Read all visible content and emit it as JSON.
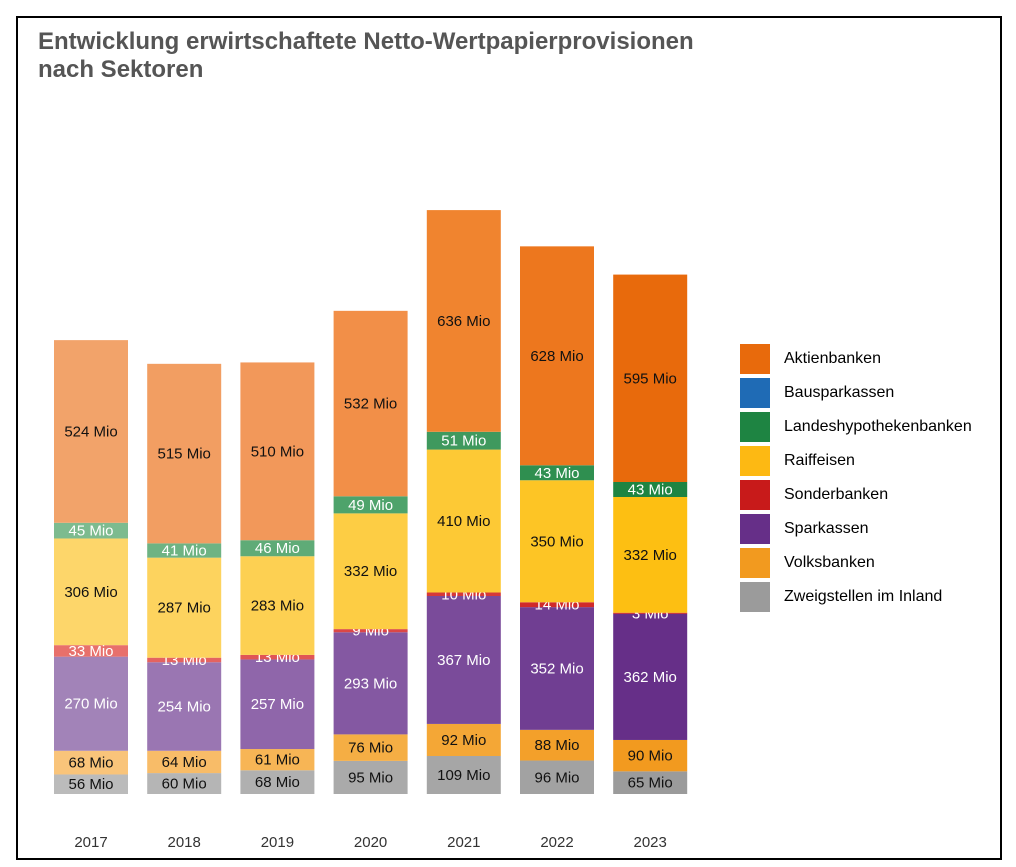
{
  "chart_data": {
    "type": "bar",
    "stacked": true,
    "title_line1": "Entwicklung erwirtschaftete Netto-Wertpapierprovisionen",
    "title_line2": "nach Sektoren",
    "categories": [
      "2017",
      "2018",
      "2019",
      "2020",
      "2021",
      "2022",
      "2023"
    ],
    "unit": "Mio",
    "series": [
      {
        "name": "Zweigstellen im Inland",
        "values": [
          56,
          60,
          68,
          95,
          109,
          96,
          65
        ]
      },
      {
        "name": "Volksbanken",
        "values": [
          68,
          64,
          61,
          76,
          92,
          88,
          90
        ]
      },
      {
        "name": "Sparkassen",
        "values": [
          270,
          254,
          257,
          293,
          367,
          352,
          362
        ]
      },
      {
        "name": "Sonderbanken",
        "values": [
          33,
          13,
          13,
          9,
          10,
          14,
          3
        ]
      },
      {
        "name": "Raiffeisen",
        "values": [
          306,
          287,
          283,
          332,
          410,
          350,
          332
        ]
      },
      {
        "name": "Landeshypothekenbanken",
        "values": [
          45,
          41,
          46,
          49,
          51,
          43,
          43
        ]
      },
      {
        "name": "Bausparkassen",
        "values": [
          0,
          0,
          0,
          0,
          0,
          0,
          0
        ]
      },
      {
        "name": "Aktienbanken",
        "values": [
          524,
          515,
          510,
          532,
          636,
          628,
          595
        ]
      }
    ],
    "colors": {
      "Zweigstellen im Inland": [
        "#bbbbbb",
        "#b5b5b5",
        "#b0b0b0",
        "#aaaaaa",
        "#a6a6a6",
        "#a2a2a2",
        "#9b9b9b"
      ],
      "Volksbanken": [
        "#f9c47a",
        "#f8bc68",
        "#f7b555",
        "#f5ae44",
        "#f4a736",
        "#f3a02a",
        "#f29a1f"
      ],
      "Sparkassen": [
        "#a283b8",
        "#9a76b2",
        "#8f66aa",
        "#8458a2",
        "#7a4b9a",
        "#703e92",
        "#662f88"
      ],
      "Sonderbanken": [
        "#e8706b",
        "#e46360",
        "#e05555",
        "#db4747",
        "#d63838",
        "#d02a2a",
        "#c81a1a"
      ],
      "Raiffeisen": [
        "#fdd66a",
        "#fdd35e",
        "#fdd052",
        "#fdcd44",
        "#fdc935",
        "#fdc525",
        "#fdbf12"
      ],
      "Landeshypothekenbanken": [
        "#7dbb8f",
        "#6eb383",
        "#5fab77",
        "#4ea36b",
        "#3f995e",
        "#2f8f50",
        "#1e8442"
      ],
      "Bausparkassen": [
        "#2b6cb0",
        "#2b6cb0",
        "#2b6cb0",
        "#2b6cb0",
        "#2b6cb0",
        "#2b6cb0",
        "#2b6cb0"
      ],
      "Aktienbanken": [
        "#f2a36a",
        "#f29e62",
        "#f2985a",
        "#f28f48",
        "#f0842f",
        "#ed771e",
        "#e86a0c"
      ]
    },
    "legend": [
      {
        "name": "Aktienbanken",
        "color": "#e86a0c"
      },
      {
        "name": "Bausparkassen",
        "color": "#1f6bb5"
      },
      {
        "name": "Landeshypothekenbanken",
        "color": "#1e8442"
      },
      {
        "name": "Raiffeisen",
        "color": "#fdb913"
      },
      {
        "name": "Sonderbanken",
        "color": "#c81a1a"
      },
      {
        "name": "Sparkassen",
        "color": "#662f88"
      },
      {
        "name": "Volksbanken",
        "color": "#f29a1f"
      },
      {
        "name": "Zweigstellen im Inland",
        "color": "#9b9b9b"
      }
    ],
    "legend_placement": "right",
    "grid": false
  }
}
